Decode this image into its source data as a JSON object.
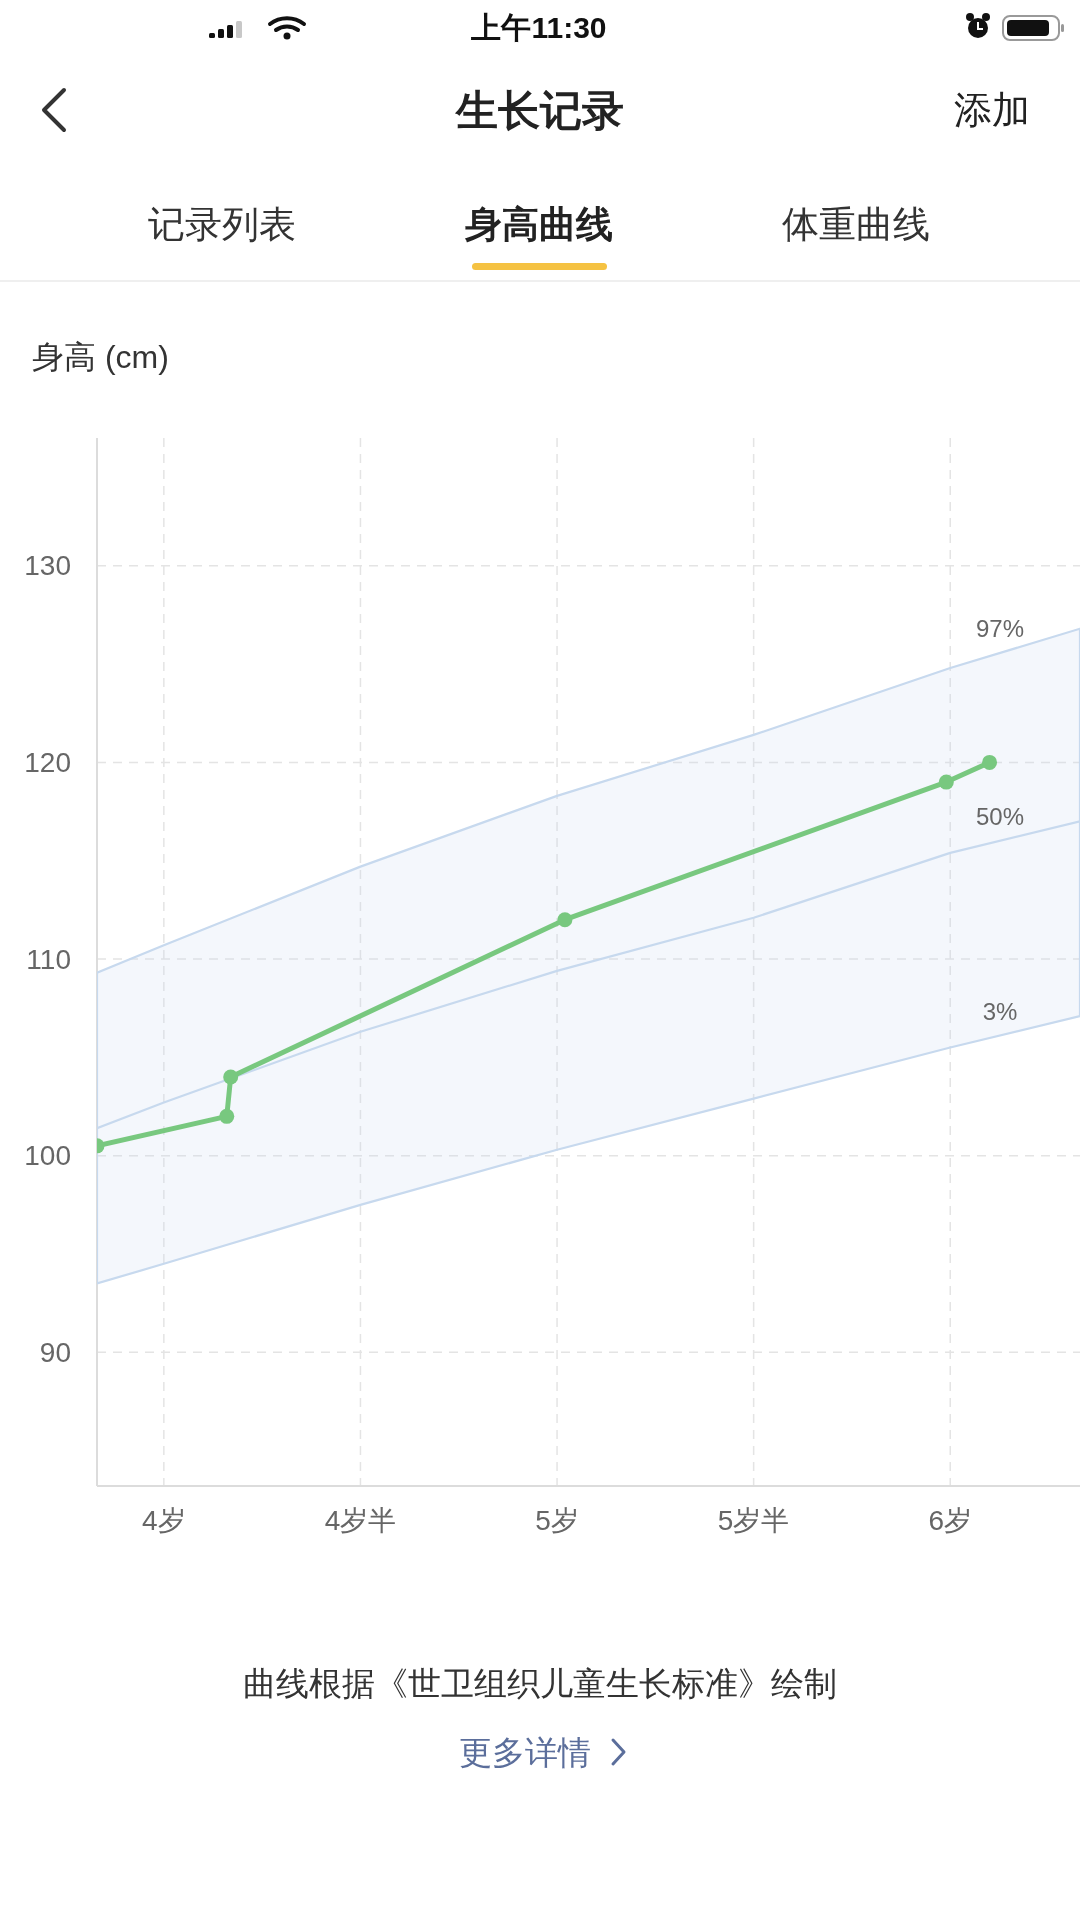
{
  "chart_data": {
    "type": "line",
    "title": "生长记录",
    "ylabel": "身高 (cm)",
    "xlim": [
      3.83,
      6.33
    ],
    "xticks": [
      {
        "value": 4,
        "label": "4岁"
      },
      {
        "value": 4.5,
        "label": "4岁半"
      },
      {
        "value": 5,
        "label": "5岁"
      },
      {
        "value": 5.5,
        "label": "5岁半"
      },
      {
        "value": 6,
        "label": "6岁"
      }
    ],
    "ylim": [
      83.2,
      136.5
    ],
    "yticks": [
      90,
      100,
      110,
      120,
      130
    ],
    "grid": true,
    "marker": "circle",
    "series": [
      {
        "name": "50%",
        "x": [
          3.83,
          4,
          4.5,
          5,
          5.5,
          6,
          6.33
        ],
        "values": [
          101.4,
          102.7,
          106.3,
          109.4,
          112.1,
          115.4,
          117.0
        ],
        "lower": [
          93.5,
          94.5,
          97.5,
          100.3,
          102.9,
          105.5,
          107.1
        ],
        "upper": [
          109.3,
          110.7,
          114.7,
          118.3,
          121.4,
          124.8,
          126.8
        ],
        "color": "#c7d9ee",
        "marker": "none"
      },
      {
        "x": [
          3.83,
          4.16,
          4.17,
          5.02,
          5.99,
          6.1
        ],
        "values": [
          100.5,
          102,
          104,
          112,
          119,
          120
        ],
        "color": "#78c87f"
      }
    ],
    "annotations": [
      "上午11:30",
      "添加",
      "记录列表",
      "身高曲线",
      "体重曲线",
      "曲线根据《世卫组织儿童生长标准》绘制",
      "更多详情",
      "97%",
      "3%"
    ]
  }
}
